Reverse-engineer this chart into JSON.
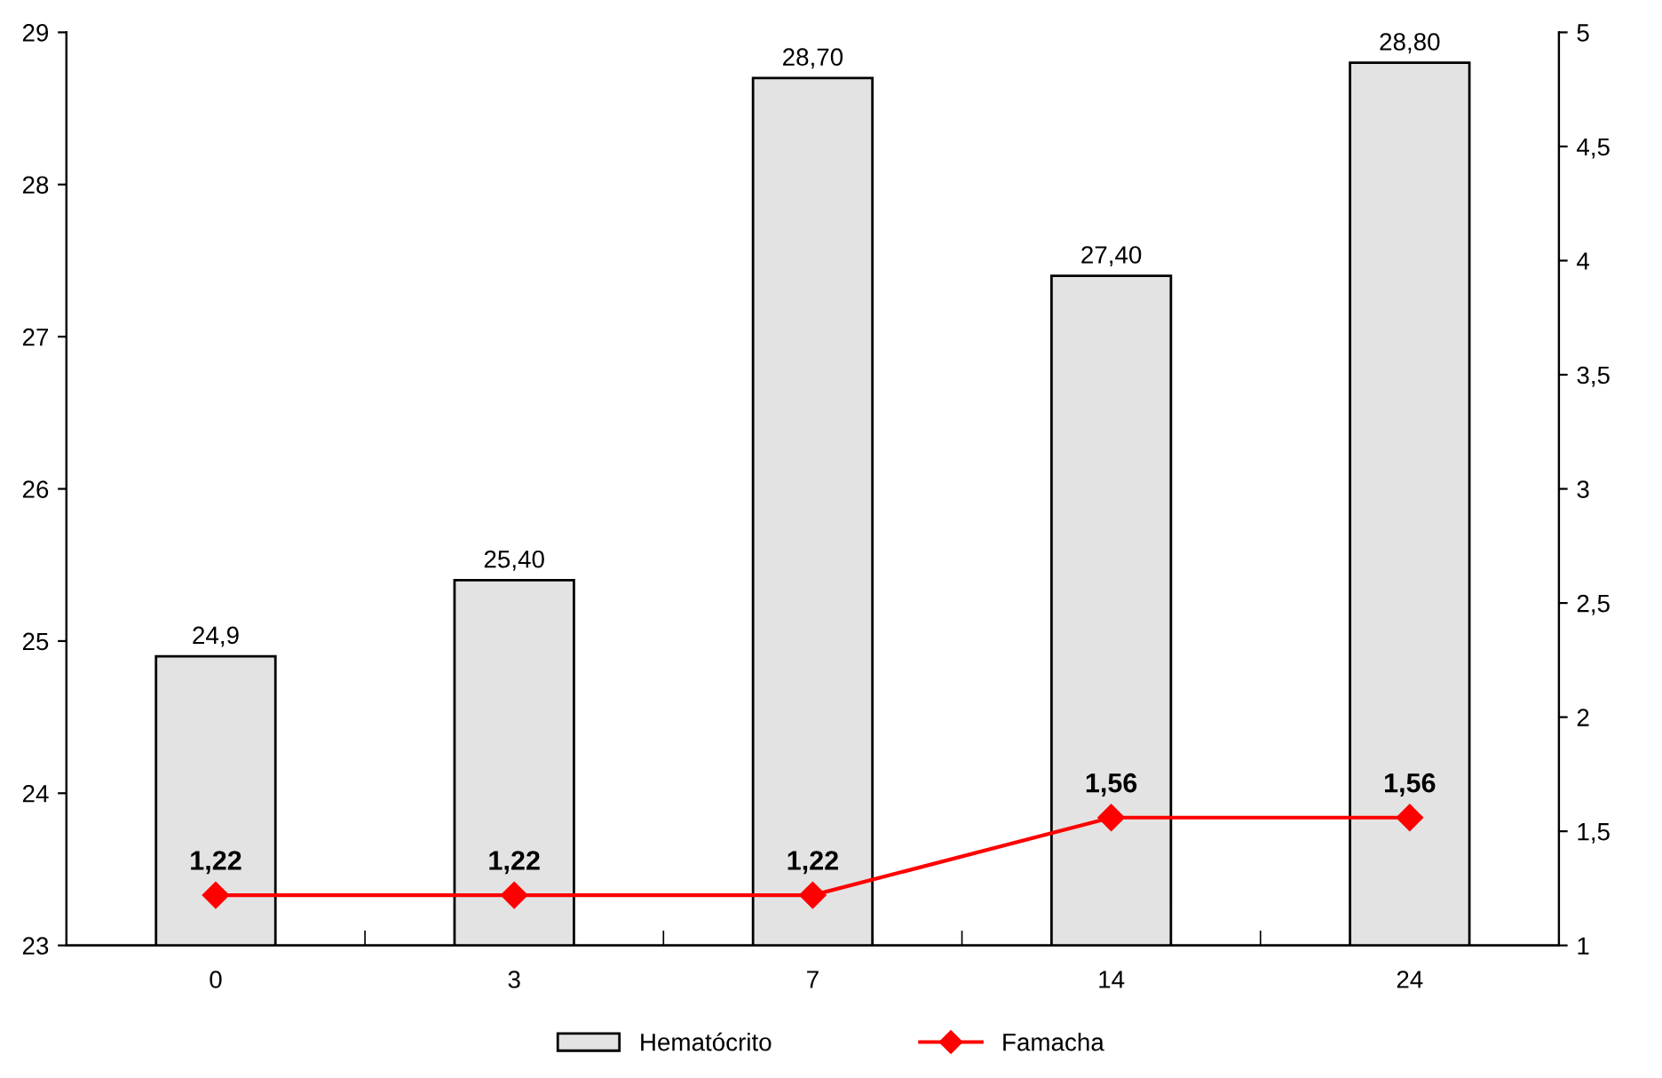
{
  "chart_data": {
    "type": "bar",
    "categories": [
      "0",
      "3",
      "7",
      "14",
      "24"
    ],
    "series": [
      {
        "name": "Hematócrito",
        "type": "bar",
        "color": "#e3e3e3",
        "values": [
          24.9,
          25.4,
          28.7,
          27.4,
          28.8
        ],
        "value_labels": [
          "24,9",
          "25,40",
          "28,70",
          "27,40",
          "28,80"
        ]
      },
      {
        "name": "Famacha",
        "type": "line",
        "axis": "y2",
        "color": "#ff0000",
        "marker": "diamond",
        "values": [
          1.22,
          1.22,
          1.22,
          1.56,
          1.56
        ],
        "value_labels": [
          "1,22",
          "1,22",
          "1,22",
          "1,56",
          "1,56"
        ]
      }
    ],
    "ylim": [
      23,
      29
    ],
    "yticks": [
      23,
      24,
      25,
      26,
      27,
      28,
      29
    ],
    "y2lim": [
      1,
      5
    ],
    "y2ticks": [
      1,
      {
        "value": 1.5,
        "label": "1,5"
      },
      2,
      {
        "value": 2.5,
        "label": "2,5"
      },
      3,
      {
        "value": 3.5,
        "label": "3,5"
      },
      4,
      {
        "value": 4.5,
        "label": "4,5"
      },
      5
    ],
    "grid": false,
    "legend": "bottom"
  }
}
